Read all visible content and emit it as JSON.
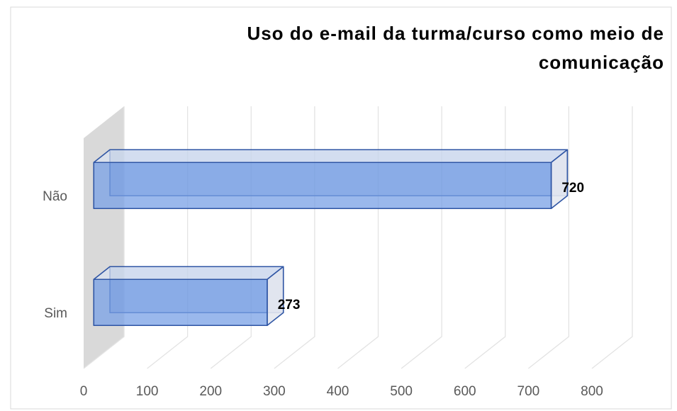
{
  "chart_data": {
    "type": "bar3d",
    "orientation": "horizontal",
    "title": "Uso do e-mail da turma/curso como meio de comunicação",
    "categories": [
      "Sim",
      "Não"
    ],
    "values": [
      273,
      720
    ],
    "color": "#4472c4",
    "xlim": [
      0,
      800
    ],
    "xticks": [
      0,
      100,
      200,
      300,
      400,
      500,
      600,
      700,
      800
    ],
    "grid": true
  }
}
